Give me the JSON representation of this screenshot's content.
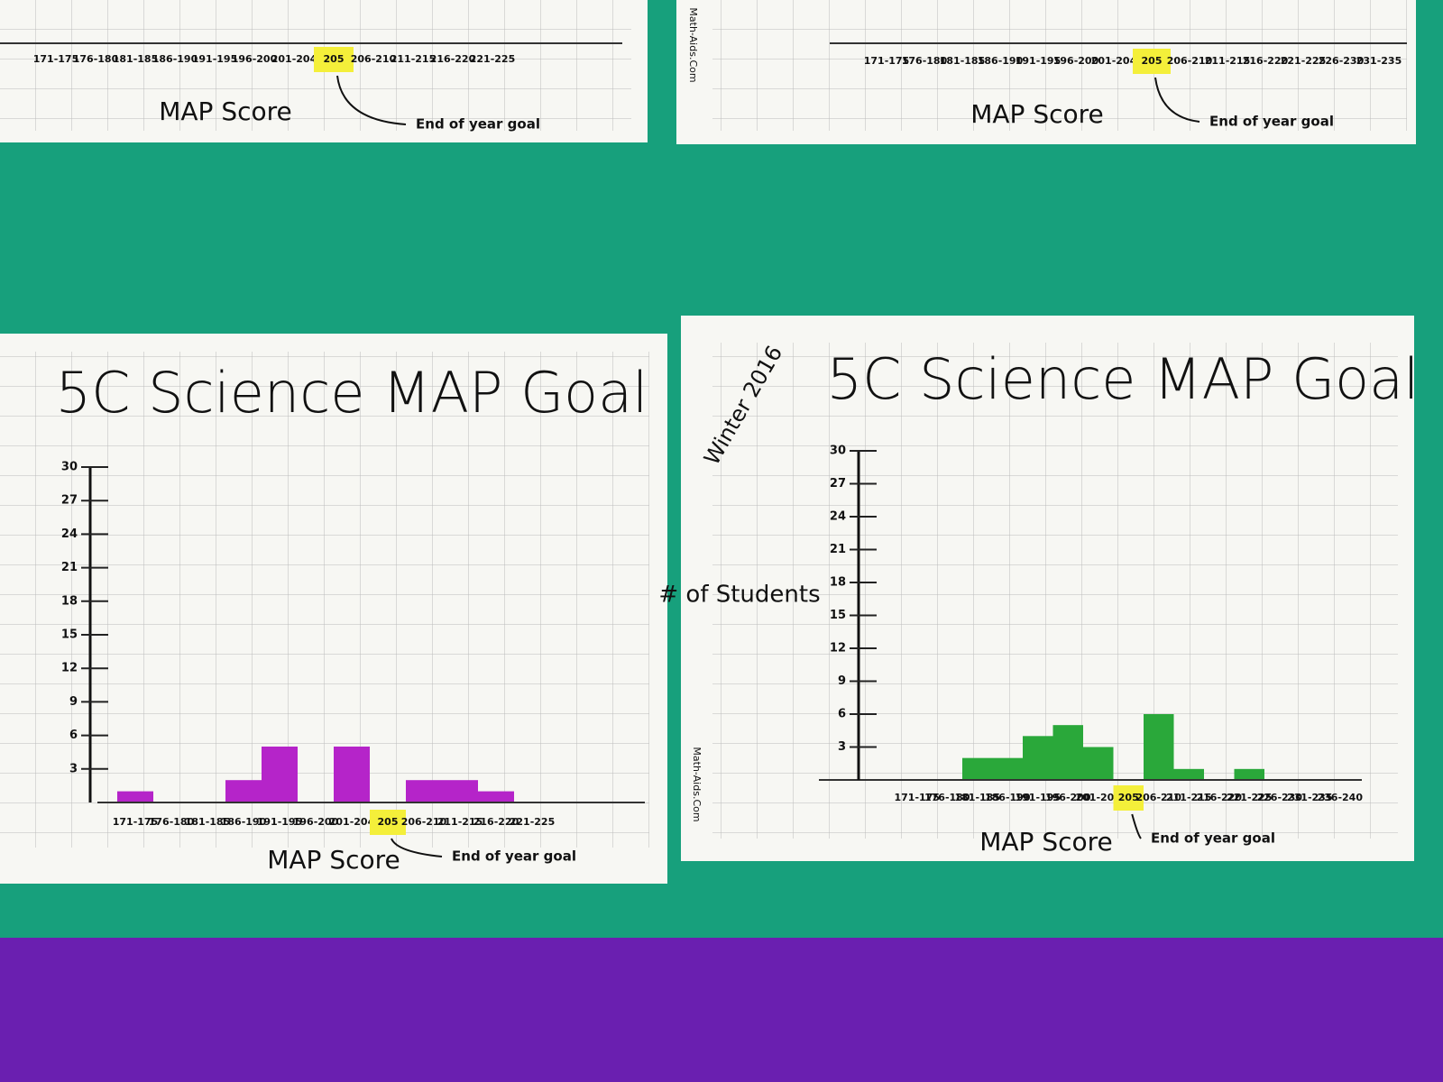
{
  "chart_data": [
    {
      "type": "bar",
      "categories": [
        "171-175",
        "176-180",
        "181-185",
        "186-190",
        "191-195",
        "196-200",
        "201-204",
        "205",
        "206-210",
        "211-215",
        "216-220",
        "221-225"
      ],
      "xlabel": "MAP Score",
      "annotation": "End of year goal"
    },
    {
      "type": "bar",
      "categories": [
        "171-175",
        "176-180",
        "181-185",
        "186-190",
        "191-195",
        "196-200",
        "201-204",
        "205",
        "206-210",
        "211-215",
        "216-220",
        "221-225",
        "226-230",
        "231-235"
      ],
      "xlabel": "MAP Score",
      "annotation": "End of year goal",
      "source": "Math-Aids.Com"
    },
    {
      "type": "bar",
      "title": "5C Science MAP Goal",
      "categories": [
        "171-175",
        "176-180",
        "181-185",
        "186-190",
        "191-195",
        "196-200",
        "201-204",
        "205",
        "206-210",
        "211-215",
        "216-220",
        "221-225"
      ],
      "values": [
        1,
        0,
        0,
        2,
        5,
        0,
        5,
        0,
        2,
        2,
        1,
        0
      ],
      "color": "#b524c9",
      "ylim": [
        0,
        30
      ],
      "yticks": [
        3,
        6,
        9,
        12,
        15,
        18,
        21,
        24,
        27,
        30
      ],
      "xlabel": "MAP Score",
      "annotation": "End of year goal"
    },
    {
      "type": "bar",
      "title": "5C Science MAP Goal",
      "categories": [
        "171-175",
        "176-180",
        "181-185",
        "186-190",
        "191-195",
        "196-200",
        "201-204",
        "205",
        "206-210",
        "211-215",
        "216-220",
        "221-225",
        "226-230",
        "231-235",
        "236-240"
      ],
      "values": [
        0,
        0,
        2,
        2,
        4,
        5,
        3,
        0,
        6,
        1,
        0,
        1,
        0,
        0,
        0
      ],
      "color": "#2aa83a",
      "ylim": [
        0,
        30
      ],
      "yticks": [
        3,
        6,
        9,
        12,
        15,
        18,
        21,
        24,
        27,
        30
      ],
      "ylabel": "# of Students",
      "note": "Winter 2016",
      "xlabel": "MAP Score",
      "annotation": "End of year goal",
      "source": "Math-Aids.Com"
    }
  ]
}
